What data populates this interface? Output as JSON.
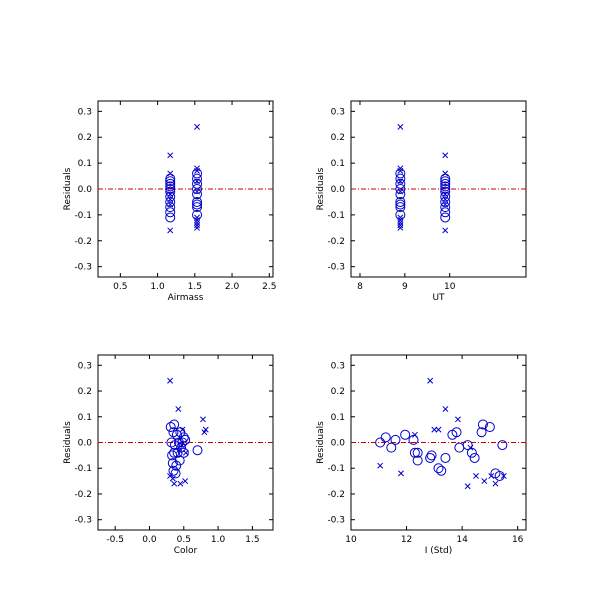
{
  "colors": {
    "marker": "#0000cc",
    "zero_line": "#cc0000",
    "axis": "#000000"
  },
  "chart_data": [
    {
      "type": "scatter",
      "xlabel": "Airmass",
      "ylabel": "Residuals",
      "xlim": [
        0.2,
        2.55
      ],
      "ylim": [
        -0.34,
        0.34
      ],
      "xticks": [
        0.5,
        1.0,
        1.5,
        2.0,
        2.5
      ],
      "xtick_labels": [
        "0.5",
        "1.0",
        "1.5",
        "2.0",
        "2.5"
      ],
      "yticks": [
        -0.3,
        -0.2,
        -0.1,
        0.0,
        0.1,
        0.2,
        0.3
      ],
      "ytick_labels": [
        "-0.3",
        "-0.2",
        "-0.1",
        "0.0",
        "0.1",
        "0.2",
        "0.3"
      ],
      "series": [
        {
          "marker": "circle",
          "points": [
            [
              1.17,
              0.04
            ],
            [
              1.17,
              0.03
            ],
            [
              1.17,
              0.02
            ],
            [
              1.17,
              0.01
            ],
            [
              1.17,
              0.0
            ],
            [
              1.17,
              -0.01
            ],
            [
              1.17,
              -0.03
            ],
            [
              1.17,
              -0.05
            ],
            [
              1.17,
              -0.07
            ],
            [
              1.17,
              -0.09
            ],
            [
              1.17,
              -0.11
            ],
            [
              1.53,
              0.06
            ],
            [
              1.53,
              0.04
            ],
            [
              1.53,
              0.02
            ],
            [
              1.53,
              0.0
            ],
            [
              1.53,
              -0.02
            ],
            [
              1.53,
              -0.05
            ],
            [
              1.53,
              -0.06
            ],
            [
              1.53,
              -0.07
            ],
            [
              1.53,
              -0.1
            ]
          ]
        },
        {
          "marker": "cross",
          "points": [
            [
              1.17,
              0.13
            ],
            [
              1.17,
              0.06
            ],
            [
              1.17,
              -0.02
            ],
            [
              1.17,
              -0.04
            ],
            [
              1.17,
              -0.06
            ],
            [
              1.17,
              -0.16
            ],
            [
              1.53,
              0.24
            ],
            [
              1.53,
              0.08
            ],
            [
              1.53,
              0.07
            ],
            [
              1.53,
              0.03
            ],
            [
              1.53,
              -0.01
            ],
            [
              1.53,
              -0.11
            ],
            [
              1.53,
              -0.12
            ],
            [
              1.53,
              -0.13
            ],
            [
              1.53,
              -0.14
            ],
            [
              1.53,
              -0.15
            ]
          ]
        }
      ]
    },
    {
      "type": "scatter",
      "xlabel": "UT",
      "ylabel": "Residuals",
      "xlim": [
        7.8,
        11.7
      ],
      "ylim": [
        -0.34,
        0.34
      ],
      "xticks": [
        8,
        9,
        10
      ],
      "xtick_labels": [
        "8",
        "9",
        "10"
      ],
      "yticks": [
        -0.3,
        -0.2,
        -0.1,
        0.0,
        0.1,
        0.2,
        0.3
      ],
      "ytick_labels": [
        "-0.3",
        "-0.2",
        "-0.1",
        "0.0",
        "0.1",
        "0.2",
        "0.3"
      ],
      "series": [
        {
          "marker": "circle",
          "points": [
            [
              8.9,
              0.06
            ],
            [
              8.9,
              0.04
            ],
            [
              8.9,
              0.02
            ],
            [
              8.9,
              0.0
            ],
            [
              8.9,
              -0.02
            ],
            [
              8.9,
              -0.05
            ],
            [
              8.9,
              -0.06
            ],
            [
              8.9,
              -0.07
            ],
            [
              8.9,
              -0.1
            ],
            [
              9.9,
              0.04
            ],
            [
              9.9,
              0.03
            ],
            [
              9.9,
              0.02
            ],
            [
              9.9,
              0.01
            ],
            [
              9.9,
              0.0
            ],
            [
              9.9,
              -0.01
            ],
            [
              9.9,
              -0.03
            ],
            [
              9.9,
              -0.05
            ],
            [
              9.9,
              -0.07
            ],
            [
              9.9,
              -0.09
            ],
            [
              9.9,
              -0.11
            ]
          ]
        },
        {
          "marker": "cross",
          "points": [
            [
              8.9,
              0.24
            ],
            [
              8.9,
              0.08
            ],
            [
              8.9,
              0.07
            ],
            [
              8.9,
              0.03
            ],
            [
              8.9,
              -0.01
            ],
            [
              8.9,
              -0.11
            ],
            [
              8.9,
              -0.12
            ],
            [
              8.9,
              -0.13
            ],
            [
              8.9,
              -0.14
            ],
            [
              8.9,
              -0.15
            ],
            [
              9.9,
              0.13
            ],
            [
              9.9,
              0.06
            ],
            [
              9.9,
              -0.02
            ],
            [
              9.9,
              -0.04
            ],
            [
              9.9,
              -0.06
            ],
            [
              9.9,
              -0.16
            ]
          ]
        }
      ]
    },
    {
      "type": "scatter",
      "xlabel": "Color",
      "ylabel": "Residuals",
      "xlim": [
        -0.75,
        1.8
      ],
      "ylim": [
        -0.34,
        0.34
      ],
      "xticks": [
        -0.5,
        0.0,
        0.5,
        1.0,
        1.5
      ],
      "xtick_labels": [
        "-0.5",
        "0.0",
        "0.5",
        "1.0",
        "1.5"
      ],
      "yticks": [
        -0.3,
        -0.2,
        -0.1,
        0.0,
        0.1,
        0.2,
        0.3
      ],
      "ytick_labels": [
        "-0.3",
        "-0.2",
        "-0.1",
        "0.0",
        "0.1",
        "0.2",
        "0.3"
      ],
      "series": [
        {
          "marker": "circle",
          "points": [
            [
              0.31,
              0.06
            ],
            [
              0.35,
              0.04
            ],
            [
              0.4,
              0.03
            ],
            [
              0.45,
              0.04
            ],
            [
              0.5,
              0.02
            ],
            [
              0.32,
              0.0
            ],
            [
              0.37,
              -0.01
            ],
            [
              0.43,
              0.0
            ],
            [
              0.48,
              0.0
            ],
            [
              0.52,
              0.01
            ],
            [
              0.33,
              -0.05
            ],
            [
              0.36,
              -0.04
            ],
            [
              0.41,
              -0.04
            ],
            [
              0.46,
              -0.02
            ],
            [
              0.5,
              -0.04
            ],
            [
              0.34,
              -0.08
            ],
            [
              0.39,
              -0.09
            ],
            [
              0.44,
              -0.07
            ],
            [
              0.35,
              -0.11
            ],
            [
              0.38,
              -0.12
            ],
            [
              0.7,
              -0.03
            ],
            [
              0.36,
              0.07
            ]
          ]
        },
        {
          "marker": "cross",
          "points": [
            [
              0.3,
              0.24
            ],
            [
              0.42,
              0.13
            ],
            [
              0.78,
              0.09
            ],
            [
              0.82,
              0.05
            ],
            [
              0.8,
              0.04
            ],
            [
              0.48,
              0.05
            ],
            [
              0.47,
              -0.01
            ],
            [
              0.53,
              -0.04
            ],
            [
              0.3,
              -0.13
            ],
            [
              0.34,
              -0.14
            ],
            [
              0.36,
              -0.16
            ],
            [
              0.45,
              -0.16
            ],
            [
              0.52,
              -0.15
            ],
            [
              0.43,
              -0.03
            ]
          ]
        }
      ]
    },
    {
      "type": "scatter",
      "xlabel": "I (Std)",
      "ylabel": "Residuals",
      "xlim": [
        10,
        16.3
      ],
      "ylim": [
        -0.34,
        0.34
      ],
      "xticks": [
        10,
        12,
        14,
        16
      ],
      "xtick_labels": [
        "10",
        "12",
        "14",
        "16"
      ],
      "yticks": [
        -0.3,
        -0.2,
        -0.1,
        0.0,
        0.1,
        0.2,
        0.3
      ],
      "ytick_labels": [
        "-0.3",
        "-0.2",
        "-0.1",
        "0.0",
        "0.1",
        "0.2",
        "0.3"
      ],
      "series": [
        {
          "marker": "circle",
          "points": [
            [
              11.05,
              0.0
            ],
            [
              11.25,
              0.02
            ],
            [
              11.45,
              -0.02
            ],
            [
              11.6,
              0.01
            ],
            [
              11.95,
              0.03
            ],
            [
              12.25,
              0.01
            ],
            [
              12.3,
              -0.04
            ],
            [
              12.4,
              -0.07
            ],
            [
              12.4,
              -0.04
            ],
            [
              12.85,
              -0.06
            ],
            [
              12.9,
              -0.05
            ],
            [
              13.15,
              -0.1
            ],
            [
              13.25,
              -0.11
            ],
            [
              13.4,
              -0.06
            ],
            [
              13.65,
              0.03
            ],
            [
              13.8,
              0.04
            ],
            [
              13.9,
              -0.02
            ],
            [
              14.2,
              -0.01
            ],
            [
              14.35,
              -0.04
            ],
            [
              14.45,
              -0.06
            ],
            [
              14.7,
              0.04
            ],
            [
              14.75,
              0.07
            ],
            [
              15.0,
              0.06
            ],
            [
              15.2,
              -0.12
            ],
            [
              15.45,
              -0.01
            ],
            [
              15.35,
              -0.13
            ]
          ]
        },
        {
          "marker": "cross",
          "points": [
            [
              11.05,
              -0.09
            ],
            [
              11.8,
              -0.12
            ],
            [
              12.3,
              0.03
            ],
            [
              12.85,
              0.24
            ],
            [
              13.0,
              0.05
            ],
            [
              13.15,
              0.05
            ],
            [
              13.4,
              0.13
            ],
            [
              13.85,
              0.09
            ],
            [
              14.2,
              -0.17
            ],
            [
              14.5,
              -0.13
            ],
            [
              14.8,
              -0.15
            ],
            [
              15.2,
              -0.16
            ],
            [
              15.5,
              -0.13
            ],
            [
              15.05,
              -0.13
            ],
            [
              14.3,
              -0.02
            ]
          ]
        }
      ]
    }
  ]
}
